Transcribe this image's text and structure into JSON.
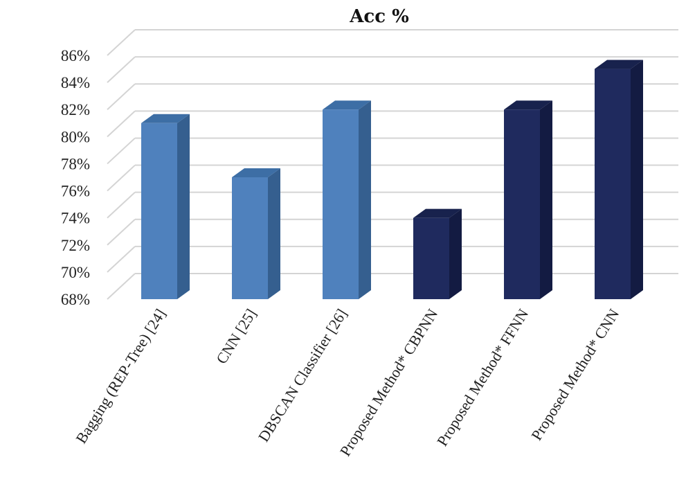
{
  "chart_data": {
    "type": "bar",
    "title": "Acc %",
    "xlabel": "",
    "ylabel": "",
    "ylim": [
      68,
      86
    ],
    "y_ticks": [
      68,
      70,
      72,
      74,
      76,
      78,
      80,
      82,
      84,
      86
    ],
    "tick_suffix": "%",
    "grid": true,
    "categories": [
      "Bagging (REP-Tree) [24]",
      "CNN [25]",
      "DBSCAN Classifier [26]",
      "Proposed Method* CBPNN",
      "Proposed Method* FFNN",
      "Proposed Method* CNN"
    ],
    "values": [
      81,
      77,
      82,
      74,
      82,
      85
    ],
    "bar_colors": [
      "#4f81bd",
      "#4f81bd",
      "#4f81bd",
      "#1f2a5e",
      "#1f2a5e",
      "#1f2a5e"
    ],
    "bar_side_colors": [
      "#355f8f",
      "#355f8f",
      "#355f8f",
      "#131b42",
      "#131b42",
      "#131b42"
    ],
    "bar_top_colors": [
      "#3d6ea5",
      "#3d6ea5",
      "#3d6ea5",
      "#18224d",
      "#18224d",
      "#18224d"
    ]
  }
}
